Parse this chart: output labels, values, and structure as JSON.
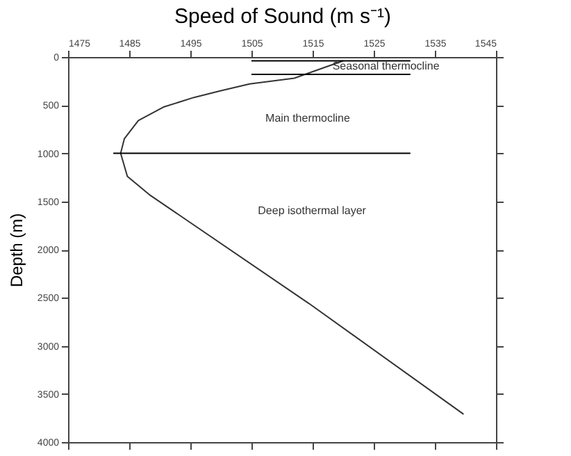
{
  "chart_data": {
    "type": "line",
    "xlabel": "Speed of Sound (m s⁻¹)",
    "ylabel": "Depth (m)",
    "xlim": [
      1475,
      1545
    ],
    "xticks": [
      1475,
      1485,
      1495,
      1505,
      1515,
      1525,
      1535,
      1545
    ],
    "ylim": [
      4000,
      0
    ],
    "yticks": [
      0,
      500,
      1000,
      1500,
      2000,
      2500,
      3000,
      3500,
      4000
    ],
    "grid": false,
    "marker": "none",
    "line_style": "solid",
    "series": [
      {
        "color": "#333333",
        "x": [
          1520,
          1512,
          1504.7,
          1500,
          1495.6,
          1490.6,
          1486.5,
          1484.2,
          1483.6,
          1484.7,
          1488.3,
          1514.4,
          1539.7
        ],
        "values": [
          40,
          220,
          280,
          350,
          420,
          520,
          660,
          850,
          1000,
          1240,
          1430,
          2560,
          3710
        ]
      },
      {
        "type": "line",
        "color": "#000000",
        "x": [
          1505,
          1531
        ],
        "values": [
          40,
          40
        ]
      },
      {
        "type": "line",
        "color": "#000000",
        "x": [
          1505,
          1531
        ],
        "values": [
          180,
          180
        ]
      },
      {
        "type": "line",
        "color": "#000000",
        "x": [
          1482.4,
          1531
        ],
        "values": [
          1000,
          1000
        ]
      }
    ],
    "annotations": [
      {
        "text": "Seasonal thermocline",
        "x": 1527,
        "y": 100
      },
      "Main thermocline",
      "Deep isothermal layer"
    ]
  }
}
